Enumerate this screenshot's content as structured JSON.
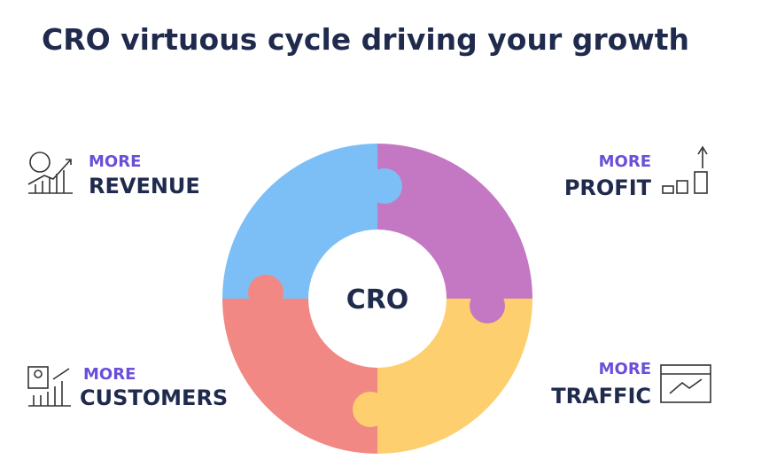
{
  "title": "CRO virtuous cycle driving your growth",
  "center": "CRO",
  "items": [
    {
      "prefix": "MORE",
      "label": "REVENUE"
    },
    {
      "prefix": "MORE",
      "label": "PROFIT"
    },
    {
      "prefix": "MORE",
      "label": "CUSTOMERS"
    },
    {
      "prefix": "MORE",
      "label": "TRAFFIC"
    }
  ]
}
